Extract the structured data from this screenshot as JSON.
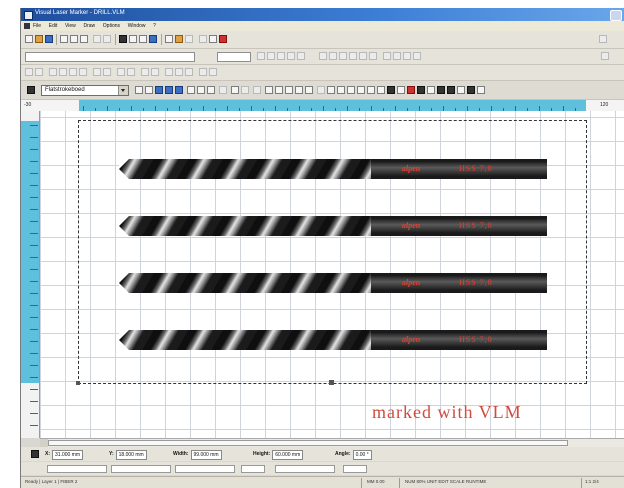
{
  "window": {
    "title": "Visual Laser Marker - DRILL.VLM"
  },
  "menu": [
    "File",
    "Edit",
    "View",
    "Draw",
    "Options",
    "Window",
    "?"
  ],
  "toolbar": {
    "font_combo_value": "Flatstrokeboed"
  },
  "ruler": {
    "start_label": "-30",
    "end_label": "120"
  },
  "canvas": {
    "drills": [
      {
        "logo": "alpen",
        "code": "HSS 7,0"
      },
      {
        "logo": "alpen",
        "code": "HSS 7,0"
      },
      {
        "logo": "alpen",
        "code": "HSS 7,0"
      },
      {
        "logo": "alpen",
        "code": "HSS 7,0"
      }
    ],
    "caption": "marked  with   VLM"
  },
  "coords": {
    "x_label": "X:",
    "x_value": "31.000 mm",
    "y_label": "Y:",
    "y_value": "18.000 mm",
    "width_label": "Width:",
    "width_value": "99.000 mm",
    "height_label": "Height:",
    "height_value": "60.000 mm",
    "angle_label": "Angle:",
    "angle_value": "0.00 °"
  },
  "status": {
    "left": "Ready | Layer 1 | FIBER 2",
    "mid": "MM 0.00",
    "right": "NUM   80%   UNIT   EDIT   SCALE   RUNTIME",
    "corner": "1:1   2/4"
  },
  "colors": {
    "title_bar": "#2a63b8",
    "ruler_active": "#5ec0dc",
    "marking_red": "#e04030"
  }
}
